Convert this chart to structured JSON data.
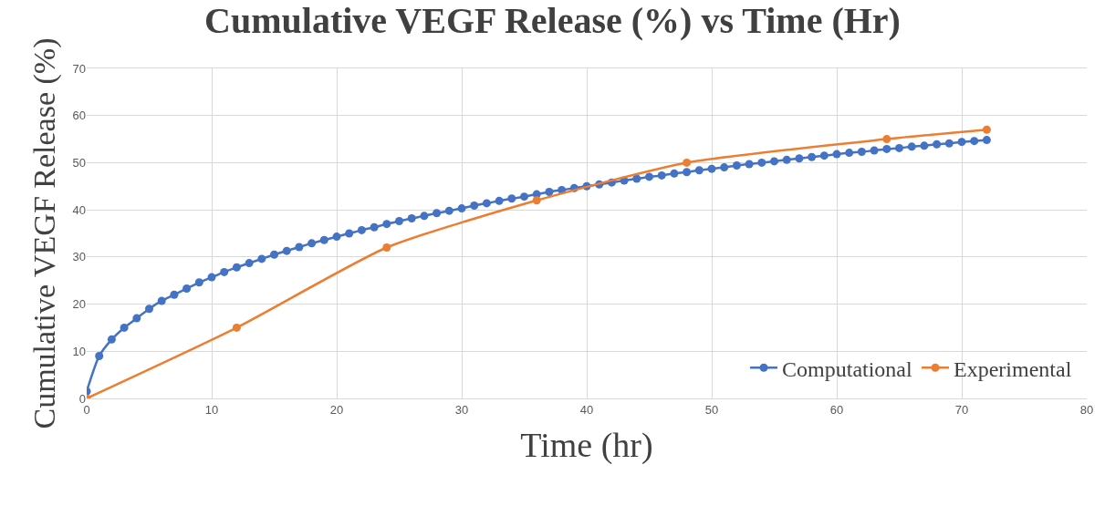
{
  "chart_data": {
    "type": "line",
    "title": "Cumulative VEGF Release (%) vs Time (Hr)",
    "xlabel": "Time (hr)",
    "ylabel": "Cumulative VEGF Release (%)",
    "xlim": [
      0,
      80
    ],
    "xticks": [
      0,
      10,
      20,
      30,
      40,
      50,
      60,
      70,
      80
    ],
    "ylim": [
      0,
      70
    ],
    "yticks": [
      0,
      10,
      20,
      30,
      40,
      50,
      60,
      70
    ],
    "grid": true,
    "legend": "bottom right",
    "marker": "circle",
    "line_style": "solid",
    "series": [
      {
        "name": "Computational",
        "color": "#4472c4",
        "x": [
          0,
          1,
          2,
          3,
          4,
          5,
          6,
          7,
          8,
          9,
          10,
          11,
          12,
          13,
          14,
          15,
          16,
          17,
          18,
          19,
          20,
          21,
          22,
          23,
          24,
          25,
          26,
          27,
          28,
          29,
          30,
          31,
          32,
          33,
          34,
          35,
          36,
          37,
          38,
          39,
          40,
          41,
          42,
          43,
          44,
          45,
          46,
          47,
          48,
          49,
          50,
          51,
          52,
          53,
          54,
          55,
          56,
          57,
          58,
          59,
          60,
          61,
          62,
          63,
          64,
          65,
          66,
          67,
          68,
          69,
          70,
          71,
          72
        ],
        "values": [
          1.5,
          9,
          12.5,
          15,
          17,
          19,
          20.7,
          22,
          23.3,
          24.6,
          25.7,
          26.8,
          27.8,
          28.7,
          29.6,
          30.5,
          31.3,
          32.1,
          32.9,
          33.6,
          34.3,
          35,
          35.7,
          36.3,
          37,
          37.6,
          38.2,
          38.7,
          39.3,
          39.8,
          40.3,
          40.9,
          41.4,
          41.9,
          42.4,
          42.8,
          43.3,
          43.8,
          44.2,
          44.6,
          45,
          45.4,
          45.8,
          46.2,
          46.6,
          47,
          47.3,
          47.7,
          48,
          48.4,
          48.7,
          49,
          49.4,
          49.7,
          50,
          50.3,
          50.6,
          50.9,
          51.2,
          51.5,
          51.8,
          52.1,
          52.3,
          52.6,
          52.9,
          53.1,
          53.4,
          53.6,
          53.9,
          54.1,
          54.4,
          54.6,
          54.8
        ]
      },
      {
        "name": "Experimental",
        "color": "#ed7d31",
        "x": [
          0,
          12,
          24,
          36,
          48,
          64,
          72
        ],
        "values": [
          0,
          15,
          32,
          42,
          50,
          55,
          57
        ]
      }
    ]
  }
}
